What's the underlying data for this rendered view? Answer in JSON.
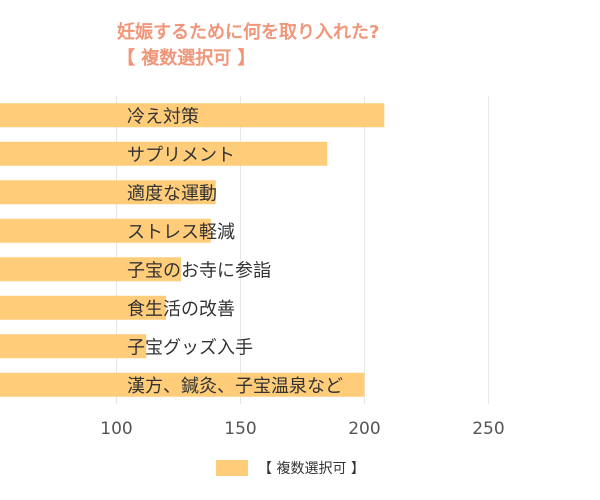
{
  "colors": {
    "title": "#F0967A",
    "bar": "#FFCC7A",
    "grid": "#E6E6E6",
    "text": "#333333",
    "tick": "#555555"
  },
  "chart_data": {
    "type": "bar",
    "orientation": "horizontal",
    "title": "妊娠するために何を取り入れた?",
    "subtitle": "【 複数選択可 】",
    "categories": [
      "冷え対策",
      "サプリメント",
      "適度な運動",
      "ストレス軽減",
      "子宝のお寺に参詣",
      "食生活の改善",
      "子宝グッズ入手",
      "漢方、鍼灸、子宝温泉など"
    ],
    "series": [
      {
        "name": "【 複数選択可 】",
        "values": [
          208,
          185,
          140,
          138,
          126,
          120,
          112,
          200
        ]
      }
    ],
    "xlim": [
      53,
      295
    ],
    "xticks": [
      100,
      150,
      200,
      250
    ],
    "grid": true,
    "legend": "bottom"
  }
}
